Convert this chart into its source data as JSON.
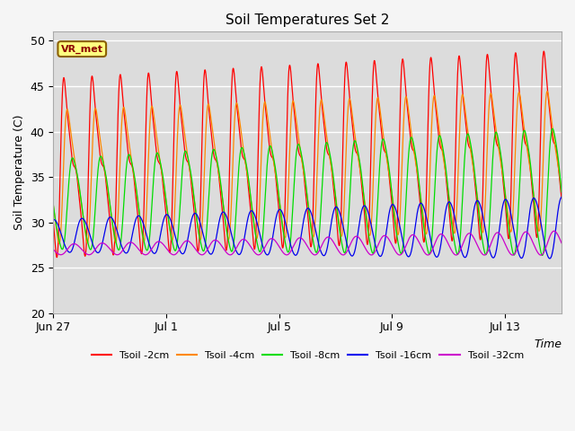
{
  "title": "Soil Temperatures Set 2",
  "xlabel": "Time",
  "ylabel": "Soil Temperature (C)",
  "ylim": [
    20,
    51
  ],
  "yticks": [
    20,
    25,
    30,
    35,
    40,
    45,
    50
  ],
  "plot_bg": "#dcdcdc",
  "fig_bg": "#f5f5f5",
  "annotation_text": "VR_met",
  "annotation_box_color": "#ffff80",
  "annotation_box_edge": "#8b6000",
  "series": [
    {
      "label": "Tsoil -2cm",
      "color": "#ff0000",
      "amp_base": 13.0,
      "amp_harmonics": [
        0.55,
        0.3,
        0.1,
        0.05
      ],
      "mean": 36.0,
      "phase": 0.25,
      "mean_trend": 0.3,
      "amp_trend": 0.5
    },
    {
      "label": "Tsoil -4cm",
      "color": "#ff8800",
      "amp_base": 9.5,
      "amp_harmonics": [
        0.65,
        0.25,
        0.08,
        0.02
      ],
      "mean": 35.0,
      "phase": 0.35,
      "mean_trend": 0.2,
      "amp_trend": 0.4
    },
    {
      "label": "Tsoil -8cm",
      "color": "#00dd00",
      "amp_base": 6.0,
      "amp_harmonics": [
        0.8,
        0.15,
        0.05,
        0.0
      ],
      "mean": 32.0,
      "phase": 0.5,
      "mean_trend": 0.15,
      "amp_trend": 2.5
    },
    {
      "label": "Tsoil -16cm",
      "color": "#0000ee",
      "amp_base": 2.0,
      "amp_harmonics": [
        0.9,
        0.08,
        0.02,
        0.0
      ],
      "mean": 28.5,
      "phase": 0.8,
      "mean_trend": 0.1,
      "amp_trend": 1.8
    },
    {
      "label": "Tsoil -32cm",
      "color": "#cc00cc",
      "amp_base": 0.6,
      "amp_harmonics": [
        0.95,
        0.05,
        0.0,
        0.0
      ],
      "mean": 27.0,
      "phase": 1.5,
      "mean_trend": 0.08,
      "amp_trend": 0.8
    }
  ],
  "xtick_positions": [
    0,
    4,
    8,
    12,
    16
  ],
  "xtick_labels": [
    "Jun 27",
    "Jul 1",
    "Jul 5",
    "Jul 9",
    "Jul 13"
  ],
  "total_days": 18,
  "n_points": 3600
}
